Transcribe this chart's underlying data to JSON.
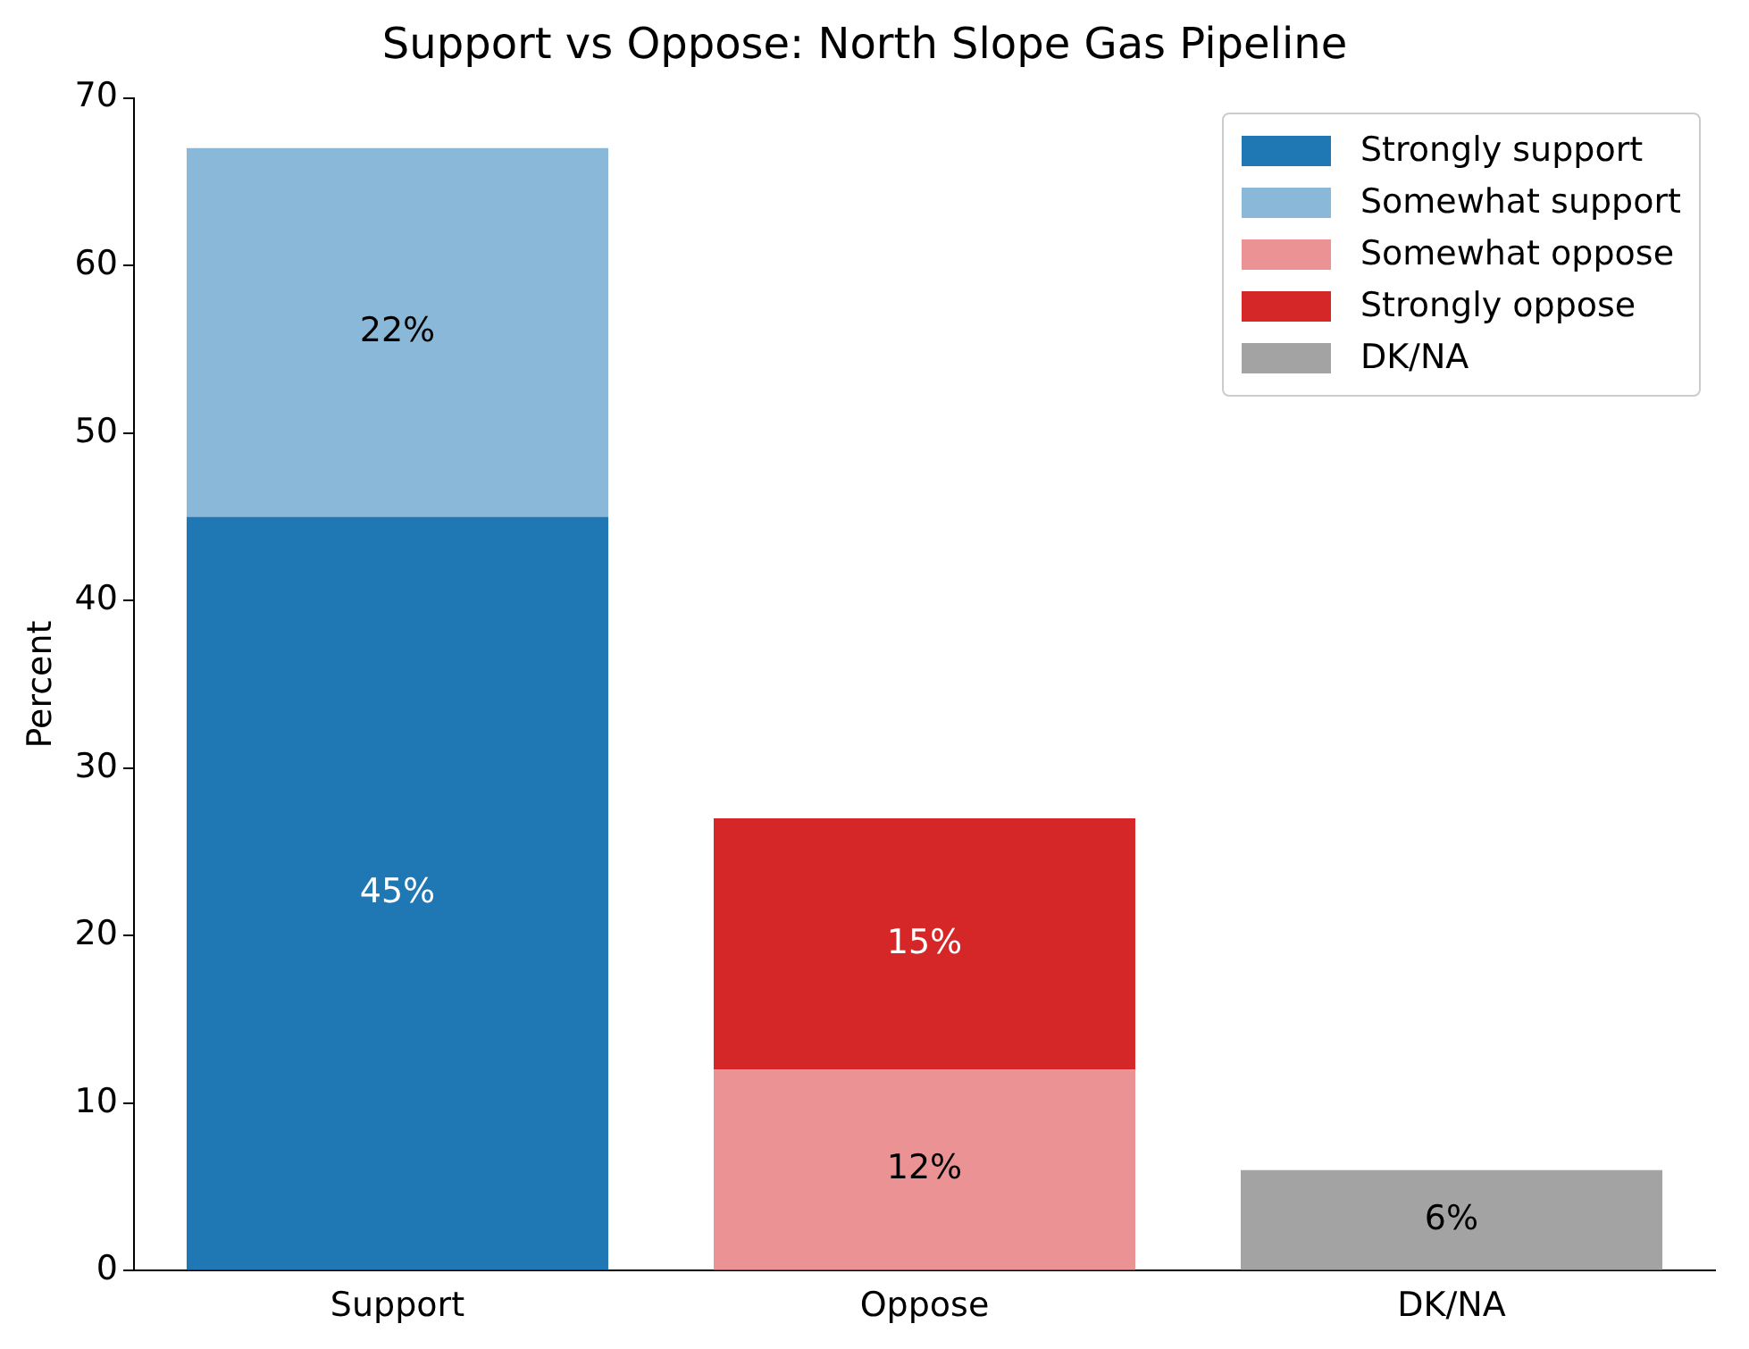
{
  "chart_data": {
    "type": "bar",
    "title": "Support vs Oppose: North Slope Gas Pipeline",
    "ylabel": "Percent",
    "categories": [
      "Support",
      "Oppose",
      "DK/NA"
    ],
    "stacked": true,
    "series": [
      {
        "name": "Strongly support",
        "color": "#1f77b4",
        "values": [
          45,
          null,
          null
        ],
        "value_labels": [
          "45%",
          null,
          null
        ]
      },
      {
        "name": "Somewhat support",
        "color": "#8ab8d9",
        "values": [
          22,
          null,
          null
        ],
        "value_labels": [
          "22%",
          null,
          null
        ]
      },
      {
        "name": "Somewhat oppose",
        "color": "#eb9394",
        "values": [
          null,
          12,
          null
        ],
        "value_labels": [
          null,
          "12%",
          null
        ]
      },
      {
        "name": "Strongly oppose",
        "color": "#d62728",
        "values": [
          null,
          15,
          null
        ],
        "value_labels": [
          null,
          "15%",
          null
        ]
      },
      {
        "name": "DK/NA",
        "color": "#a3a3a3",
        "values": [
          null,
          null,
          6
        ],
        "value_labels": [
          null,
          null,
          "6%"
        ]
      }
    ],
    "ylim": [
      0,
      70
    ],
    "yticks": [
      0,
      10,
      20,
      30,
      40,
      50,
      60,
      70
    ],
    "grid": false,
    "legend": "top right"
  }
}
